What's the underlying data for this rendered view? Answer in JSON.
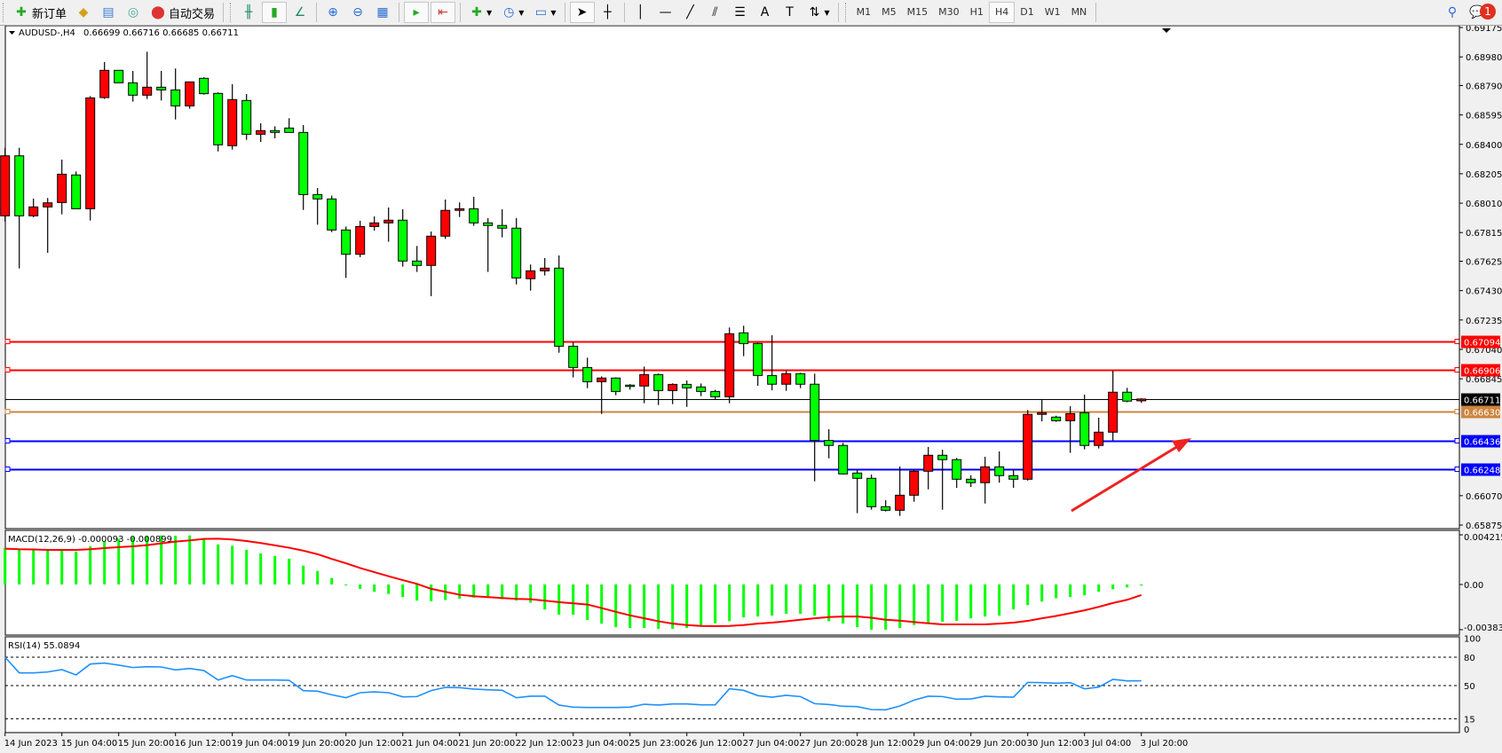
{
  "toolbar": {
    "new_order_label": "新订单",
    "auto_trading_label": "自动交易",
    "timeframes": [
      "M1",
      "M5",
      "M15",
      "M30",
      "H1",
      "H4",
      "D1",
      "W1",
      "MN"
    ],
    "active_timeframe": "H4",
    "notification_count": "1"
  },
  "chart_header": {
    "symbol": "AUDUSD-,H4",
    "ohlc": "0.66699 0.66716 0.66685 0.66711"
  },
  "macd": {
    "label": "MACD(12,26,9) -0.000093 -0.000899",
    "axis_labels": [
      "0.004215",
      "0.00",
      "-0.003835"
    ]
  },
  "rsi": {
    "label": "RSI(14) 55.0894",
    "axis_labels": [
      "100",
      "80",
      "50",
      "15",
      "0"
    ]
  },
  "chart_data": [
    {
      "type": "candlestick",
      "symbol": "AUDUSD-",
      "timeframe": "H4",
      "colors": {
        "bull_body": "#ff0000",
        "bear_body": "#00ff00",
        "wick": "#000000"
      },
      "ylim": [
        0.65875,
        0.69175
      ],
      "price_ticks": [
        "0.69175",
        "0.68980",
        "0.68790",
        "0.68595",
        "0.68400",
        "0.68205",
        "0.68010",
        "0.67815",
        "0.67625",
        "0.67430",
        "0.67235",
        "0.67040",
        "0.66845",
        "0.66070",
        "0.65875"
      ],
      "time_labels": [
        "14 Jun 2023",
        "15 Jun 04:00",
        "15 Jun 20:00",
        "16 Jun 12:00",
        "19 Jun 04:00",
        "19 Jun 20:00",
        "20 Jun 12:00",
        "21 Jun 04:00",
        "21 Jun 20:00",
        "22 Jun 12:00",
        "23 Jun 04:00",
        "25 Jun 23:00",
        "26 Jun 12:00",
        "27 Jun 04:00",
        "27 Jun 20:00",
        "28 Jun 12:00",
        "29 Jun 04:00",
        "29 Jun 20:00",
        "30 Jun 12:00",
        "3 Jul 04:00",
        "3 Jul 20:00"
      ],
      "ohlc": [
        [
          0.67926,
          0.68377,
          0.67887,
          0.68324
        ],
        [
          0.68324,
          0.68377,
          0.67577,
          0.67926
        ],
        [
          0.67926,
          0.6804,
          0.67916,
          0.67985
        ],
        [
          0.67985,
          0.68044,
          0.67681,
          0.68012
        ],
        [
          0.68014,
          0.68299,
          0.67936,
          0.68202
        ],
        [
          0.68197,
          0.6822,
          0.67973,
          0.67973
        ],
        [
          0.67973,
          0.6872,
          0.67895,
          0.68708
        ],
        [
          0.6871,
          0.68946,
          0.68701,
          0.68891
        ],
        [
          0.68891,
          0.68891,
          0.68808,
          0.68808
        ],
        [
          0.68808,
          0.68887,
          0.68683,
          0.68726
        ],
        [
          0.68726,
          0.69014,
          0.68701,
          0.68779
        ],
        [
          0.68779,
          0.68887,
          0.68691,
          0.68761
        ],
        [
          0.68761,
          0.68903,
          0.68565,
          0.68655
        ],
        [
          0.68655,
          0.68814,
          0.68636,
          0.68814
        ],
        [
          0.68838,
          0.68845,
          0.6873,
          0.68736
        ],
        [
          0.68738,
          0.68745,
          0.68353,
          0.68397
        ],
        [
          0.68391,
          0.68799,
          0.68365,
          0.68697
        ],
        [
          0.68691,
          0.68734,
          0.6843,
          0.68467
        ],
        [
          0.68467,
          0.6854,
          0.68416,
          0.68491
        ],
        [
          0.68491,
          0.6852,
          0.6844,
          0.68479
        ],
        [
          0.68508,
          0.68573,
          0.68479,
          0.68479
        ],
        [
          0.68479,
          0.68528,
          0.67965,
          0.68067
        ],
        [
          0.68067,
          0.6811,
          0.67867,
          0.68038
        ],
        [
          0.68038,
          0.6806,
          0.67818,
          0.67832
        ],
        [
          0.67832,
          0.67855,
          0.67514,
          0.67671
        ],
        [
          0.67671,
          0.67893,
          0.67652,
          0.67855
        ],
        [
          0.67855,
          0.67922,
          0.67828,
          0.67879
        ],
        [
          0.67879,
          0.67981,
          0.67754,
          0.67897
        ],
        [
          0.67897,
          0.67969,
          0.67589,
          0.67626
        ],
        [
          0.67626,
          0.67726,
          0.67554,
          0.67597
        ],
        [
          0.67597,
          0.67822,
          0.67393,
          0.67791
        ],
        [
          0.67791,
          0.68034,
          0.67773,
          0.67962
        ],
        [
          0.67962,
          0.68015,
          0.67918,
          0.67973
        ],
        [
          0.67973,
          0.68052,
          0.6786,
          0.67879
        ],
        [
          0.67879,
          0.67911,
          0.67554,
          0.67862
        ],
        [
          0.67862,
          0.67969,
          0.67783,
          0.67844
        ],
        [
          0.67844,
          0.67911,
          0.67471,
          0.67514
        ],
        [
          0.67509,
          0.67603,
          0.6743,
          0.67561
        ],
        [
          0.67561,
          0.67646,
          0.6753,
          0.67579
        ],
        [
          0.67579,
          0.67663,
          0.67018,
          0.67061
        ],
        [
          0.67061,
          0.67087,
          0.66854,
          0.6692
        ],
        [
          0.6692,
          0.66985,
          0.66783,
          0.66826
        ],
        [
          0.66826,
          0.66861,
          0.66612,
          0.6685
        ],
        [
          0.6685,
          0.66855,
          0.66736,
          0.66761
        ],
        [
          0.66803,
          0.6681,
          0.66773,
          0.66797
        ],
        [
          0.66797,
          0.66926,
          0.66683,
          0.66873
        ],
        [
          0.66873,
          0.6688,
          0.66671,
          0.66767
        ],
        [
          0.66767,
          0.66815,
          0.66677,
          0.66808
        ],
        [
          0.66808,
          0.66834,
          0.66659,
          0.66785
        ],
        [
          0.66791,
          0.66814,
          0.6673,
          0.66761
        ],
        [
          0.66761,
          0.66772,
          0.6671,
          0.66726
        ],
        [
          0.66726,
          0.67185,
          0.66683,
          0.67144
        ],
        [
          0.6715,
          0.67197,
          0.66995,
          0.67079
        ],
        [
          0.67079,
          0.67085,
          0.66799,
          0.66867
        ],
        [
          0.66867,
          0.67134,
          0.66769,
          0.66809
        ],
        [
          0.66809,
          0.66897,
          0.66765,
          0.66879
        ],
        [
          0.66879,
          0.66885,
          0.66783,
          0.66809
        ],
        [
          0.66809,
          0.66879,
          0.66165,
          0.66436
        ],
        [
          0.66436,
          0.66511,
          0.66318,
          0.66403
        ],
        [
          0.66403,
          0.6642,
          0.6621,
          0.66214
        ],
        [
          0.6622,
          0.6624,
          0.65954,
          0.66185
        ],
        [
          0.66185,
          0.6621,
          0.65977,
          0.65997
        ],
        [
          0.65997,
          0.6604,
          0.65965,
          0.65973
        ],
        [
          0.65973,
          0.66263,
          0.65936,
          0.66073
        ],
        [
          0.66073,
          0.6624,
          0.6603,
          0.66232
        ],
        [
          0.66232,
          0.66393,
          0.66112,
          0.66338
        ],
        [
          0.66338,
          0.66375,
          0.65977,
          0.66309
        ],
        [
          0.66309,
          0.6632,
          0.66122,
          0.66179
        ],
        [
          0.66179,
          0.66205,
          0.66128,
          0.66156
        ],
        [
          0.66156,
          0.66328,
          0.66018,
          0.66261
        ],
        [
          0.66261,
          0.66363,
          0.66156,
          0.66203
        ],
        [
          0.66203,
          0.6624,
          0.66122,
          0.66179
        ],
        [
          0.66179,
          0.66638,
          0.6617,
          0.66609
        ],
        [
          0.66609,
          0.66711,
          0.66563,
          0.6662
        ],
        [
          0.66591,
          0.666,
          0.6656,
          0.66567
        ],
        [
          0.66567,
          0.66663,
          0.66354,
          0.66614
        ],
        [
          0.6662,
          0.6674,
          0.66377,
          0.66403
        ],
        [
          0.66403,
          0.66587,
          0.66383,
          0.66491
        ],
        [
          0.66491,
          0.66899,
          0.66436,
          0.66756
        ],
        [
          0.66756,
          0.66785,
          0.6669,
          0.66697
        ],
        [
          0.66699,
          0.66716,
          0.66685,
          0.66711
        ]
      ],
      "horizontal_lines": [
        {
          "price": "0.67094",
          "color": "#ff0000"
        },
        {
          "price": "0.66906",
          "color": "#ff0000"
        },
        {
          "price": "0.66711",
          "color": "#000000",
          "kind": "bid"
        },
        {
          "price": "0.66630",
          "color": "#cd853f"
        },
        {
          "price": "0.66436",
          "color": "#0000ff"
        },
        {
          "price": "0.66248",
          "color": "#0000ff"
        }
      ]
    },
    {
      "type": "bar+line",
      "indicator": "MACD(12,26,9)",
      "ylim": [
        -0.003835,
        0.004215
      ],
      "colors": {
        "histogram": "#00ff00",
        "signal": "#ff0000"
      },
      "macd": [
        0.00312,
        0.00294,
        0.00294,
        0.00287,
        0.00287,
        0.00279,
        0.00324,
        0.00369,
        0.00387,
        0.00404,
        0.00411,
        0.00416,
        0.00414,
        0.00416,
        0.00384,
        0.00339,
        0.00329,
        0.00294,
        0.00264,
        0.00242,
        0.00219,
        0.0016,
        0.00115,
        0.00055,
        -7e-05,
        -0.00037,
        -0.00062,
        -0.0008,
        -0.00107,
        -0.00137,
        -0.00142,
        -0.00132,
        -0.0012,
        -0.00112,
        -0.00112,
        -0.00125,
        -0.00137,
        -0.00155,
        -0.00212,
        -0.00257,
        -0.00257,
        -0.00302,
        -0.00332,
        -0.00362,
        -0.00369,
        -0.00369,
        -0.00377,
        -0.00377,
        -0.00369,
        -0.00352,
        -0.00329,
        -0.00312,
        -0.00279,
        -0.00272,
        -0.00264,
        -0.00249,
        -0.00249,
        -0.00264,
        -0.00312,
        -0.00332,
        -0.00362,
        -0.00384,
        -0.00384,
        -0.00369,
        -0.00344,
        -0.00324,
        -0.00317,
        -0.00309,
        -0.00287,
        -0.00272,
        -0.00264,
        -0.00212,
        -0.00175,
        -0.00145,
        -0.00117,
        -0.00107,
        -0.00092,
        -0.00062,
        -0.0004,
        -0.00025,
        -9.3e-05
      ],
      "signal": [
        0.00304,
        0.00299,
        0.00297,
        0.00294,
        0.00294,
        0.00294,
        0.00299,
        0.00309,
        0.00317,
        0.00324,
        0.00334,
        0.00349,
        0.00364,
        0.00374,
        0.00387,
        0.00389,
        0.00382,
        0.00369,
        0.00352,
        0.00332,
        0.00312,
        0.00287,
        0.00257,
        0.00217,
        0.0018,
        0.0014,
        0.00105,
        0.0007,
        0.00037,
        5e-05,
        -0.00037,
        -0.00062,
        -0.00087,
        -0.001,
        -0.00107,
        -0.00115,
        -0.00122,
        -0.00125,
        -0.00137,
        -0.0015,
        -0.0016,
        -0.0017,
        -0.002,
        -0.00232,
        -0.00262,
        -0.00287,
        -0.00312,
        -0.00332,
        -0.00344,
        -0.00352,
        -0.00354,
        -0.00352,
        -0.00344,
        -0.00332,
        -0.00324,
        -0.00312,
        -0.00299,
        -0.00287,
        -0.00277,
        -0.00272,
        -0.00272,
        -0.00282,
        -0.00299,
        -0.00307,
        -0.00319,
        -0.00329,
        -0.00339,
        -0.00339,
        -0.00339,
        -0.00339,
        -0.00332,
        -0.00324,
        -0.00309,
        -0.00287,
        -0.00267,
        -0.00244,
        -0.00219,
        -0.0019,
        -0.00157,
        -0.0013,
        -0.000899
      ]
    },
    {
      "type": "line",
      "indicator": "RSI(14)",
      "ylim": [
        0,
        100
      ],
      "levels": [
        80,
        50,
        15
      ],
      "color": "#1e90ff",
      "values": [
        80,
        63.4,
        63.4,
        64.4,
        66.9,
        61.3,
        72.8,
        73.8,
        71.6,
        69.1,
        70,
        69.7,
        66.6,
        68.1,
        65.9,
        55.9,
        60.6,
        55.9,
        55.9,
        55.9,
        55.6,
        44.7,
        44.1,
        40.3,
        37.2,
        42.5,
        43.4,
        42.5,
        38.1,
        38.4,
        44.7,
        48.1,
        47.8,
        46.3,
        45.6,
        45,
        37.2,
        38.8,
        38.8,
        29.4,
        27.2,
        26.9,
        26.9,
        26.9,
        27.2,
        30.3,
        29.4,
        30.6,
        30.6,
        29.7,
        29.7,
        46.6,
        45,
        39.4,
        37.8,
        39.7,
        38.4,
        30.9,
        30,
        28.1,
        27.8,
        24.7,
        24.4,
        28.4,
        34.7,
        38.8,
        38.4,
        35.6,
        35.9,
        38.8,
        38.1,
        37.8,
        53.4,
        53.1,
        52.5,
        53.1,
        46.6,
        48.4,
        56.6,
        55,
        55.0894
      ]
    }
  ]
}
